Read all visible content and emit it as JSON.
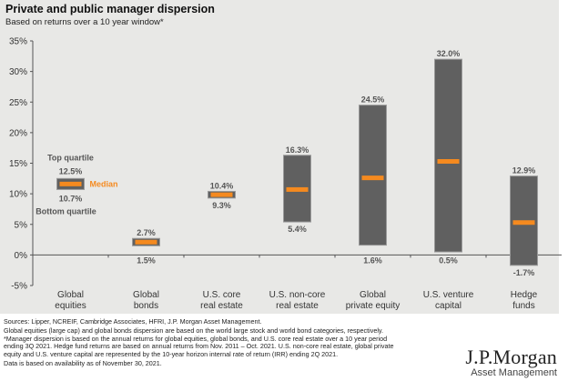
{
  "header": {
    "title": "Private and public manager dispersion",
    "subtitle": "Based on returns over a 10 year window*"
  },
  "chart_data": {
    "type": "bar",
    "subtype": "floating-range-with-median",
    "title": "Private and public manager dispersion",
    "subtitle": "Based on returns over a 10 year window*",
    "xlabel": "",
    "ylabel": "",
    "ylim": [
      -5,
      35
    ],
    "yticks": [
      -5,
      0,
      5,
      10,
      15,
      20,
      25,
      30,
      35
    ],
    "ytick_labels": [
      "-5%",
      "0%",
      "5%",
      "10%",
      "15%",
      "20%",
      "25%",
      "30%",
      "35%"
    ],
    "grid": false,
    "categories": [
      [
        "Global",
        "equities"
      ],
      [
        "Global",
        "bonds"
      ],
      [
        "U.S. core",
        "real estate"
      ],
      [
        "U.S. non-core",
        "real estate"
      ],
      [
        "Global",
        "private equity"
      ],
      [
        "U.S. venture",
        "capital"
      ],
      [
        "Hedge",
        "funds"
      ]
    ],
    "series": [
      {
        "name": "Top quartile",
        "values": [
          12.5,
          2.7,
          10.4,
          16.3,
          24.5,
          32.0,
          12.9
        ]
      },
      {
        "name": "Median",
        "values": [
          11.6,
          2.1,
          9.85,
          10.7,
          12.6,
          15.3,
          5.3
        ]
      },
      {
        "name": "Bottom quartile",
        "values": [
          10.7,
          1.5,
          9.3,
          5.4,
          1.6,
          0.5,
          -1.7
        ]
      }
    ],
    "top_labels": [
      "",
      "2.7%",
      "10.4%",
      "16.3%",
      "24.5%",
      "32.0%",
      "12.9%"
    ],
    "bottom_labels": [
      "",
      "1.5%",
      "9.3%",
      "5.4%",
      "1.6%",
      "0.5%",
      "-1.7%"
    ],
    "legend": {
      "placement": "inline-left",
      "top_label": "Top quartile",
      "top_value": "12.5%",
      "median_label": "Median",
      "bottom_value": "10.7%",
      "bottom_label": "Bottom quartile"
    },
    "colors": {
      "range_bar": "#606060",
      "range_border": "#9a9a9a",
      "median": "#f58a1f",
      "axis": "#555555"
    }
  },
  "footer": {
    "sources": "Sources: Lipper, NCREIF, Cambridge Associates, HFRI, J.P. Morgan Asset Management.",
    "note": "Global equities (large cap) and global bonds dispersion are based on the world large stock and world bond categories, respectively. *Manager dispersion is based on the annual returns for global equities, global bonds, and U.S. core real estate over a 10 year period ending 3Q 2021. Hedge fund returns are based on annual returns from Nov. 2011 – Oct. 2021. U.S. non-core real estate, global private equity and U.S. venture capital are represented by the 10-year horizon internal rate of return (IRR) ending 2Q 2021.",
    "availability": "Data is based on availability as of November 30, 2021."
  },
  "logo": {
    "main": "J.P.Morgan",
    "sub": "Asset Management"
  }
}
